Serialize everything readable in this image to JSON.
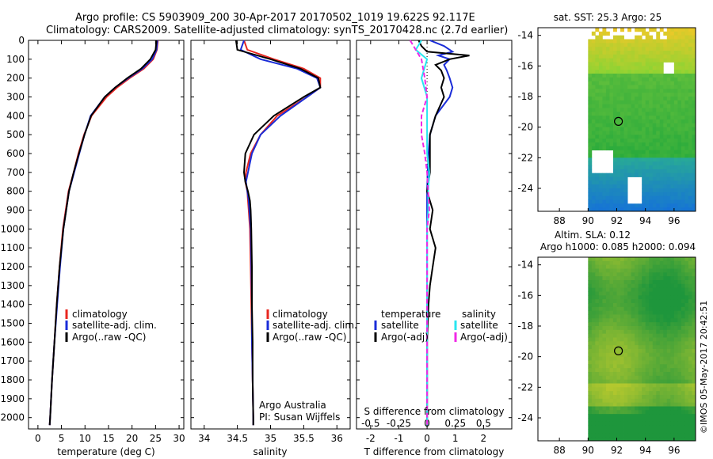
{
  "header": {
    "line1": "Argo profile: CS 5903909_200 30-Apr-2017 20170502_1019 19.622S 92.117E",
    "line2": "Climatology: CARS2009. Satellite-adjusted climatology: synTS_20170428.nc (2.7d earlier)"
  },
  "colors": {
    "climatology": "#e8261f",
    "satellite": "#1a2cd8",
    "argo": "#000000",
    "s_satellite": "#28e6f0",
    "s_argo": "#f028e6"
  },
  "chart_data": [
    {
      "id": "temperature",
      "type": "line",
      "xlabel": "temperature (deg C)",
      "xlim": [
        -2,
        31
      ],
      "xticks": [
        0,
        5,
        10,
        15,
        20,
        25,
        30
      ],
      "ylim": [
        2060,
        0
      ],
      "yticks": [
        0,
        100,
        200,
        300,
        400,
        500,
        600,
        700,
        800,
        900,
        1000,
        1100,
        1200,
        1300,
        1400,
        1500,
        1600,
        1700,
        1800,
        1900,
        2000
      ],
      "legend": [
        "climatology",
        "satellite-adj. clim.",
        "Argo(..raw -QC)"
      ],
      "series": [
        {
          "name": "climatology",
          "depth": [
            0,
            50,
            100,
            150,
            200,
            250,
            300,
            400,
            500,
            600,
            700,
            800,
            1000,
            1200,
            1400,
            1600,
            1800,
            2000,
            2040
          ],
          "values": [
            25.5,
            25.3,
            24.5,
            22.5,
            19.5,
            16.8,
            14.6,
            11.4,
            9.8,
            8.6,
            7.6,
            6.5,
            5.3,
            4.6,
            4.0,
            3.5,
            3.0,
            2.6,
            2.5
          ]
        },
        {
          "name": "satellite-adj. clim.",
          "depth": [
            0,
            50,
            100,
            150,
            200,
            250,
            300,
            400,
            500,
            600,
            700,
            800,
            1000,
            1200,
            1400,
            1600,
            1800,
            2000,
            2040
          ],
          "values": [
            25.4,
            25.2,
            24.3,
            22.2,
            19.2,
            16.4,
            14.2,
            11.2,
            9.9,
            8.8,
            7.7,
            6.6,
            5.4,
            4.7,
            4.1,
            3.5,
            3.0,
            2.6,
            2.5
          ]
        },
        {
          "name": "Argo(..raw -QC)",
          "depth": [
            0,
            50,
            100,
            150,
            200,
            250,
            300,
            400,
            500,
            600,
            700,
            800,
            1000,
            1200,
            1400,
            1600,
            1800,
            2000,
            2040
          ],
          "values": [
            25.2,
            25.0,
            23.9,
            21.9,
            19.0,
            16.4,
            14.2,
            11.3,
            9.9,
            8.7,
            7.6,
            6.6,
            5.4,
            4.6,
            4.0,
            3.5,
            3.0,
            2.6,
            2.5
          ]
        }
      ]
    },
    {
      "id": "salinity",
      "type": "line",
      "xlabel": "salinity",
      "xlim": [
        33.8,
        36.2
      ],
      "xticks": [
        34,
        34.5,
        35,
        35.5,
        36
      ],
      "ylim": [
        2060,
        0
      ],
      "legend": [
        "climatology",
        "satellite-adj. clim.",
        "Argo(..raw -QC)"
      ],
      "annotations": [
        "Argo Australia",
        "PI: Susan Wijffels"
      ],
      "series": [
        {
          "name": "climatology",
          "depth": [
            0,
            50,
            100,
            150,
            200,
            250,
            300,
            400,
            500,
            600,
            700,
            750,
            800,
            850,
            900,
            1000,
            1200,
            1400,
            1600,
            1800,
            2000,
            2040
          ],
          "values": [
            34.6,
            34.65,
            35.05,
            35.5,
            35.75,
            35.75,
            35.55,
            35.1,
            34.85,
            34.7,
            34.63,
            34.62,
            34.65,
            34.66,
            34.67,
            34.69,
            34.7,
            34.71,
            34.72,
            34.73,
            34.74,
            34.74
          ]
        },
        {
          "name": "satellite-adj. clim.",
          "depth": [
            0,
            50,
            100,
            150,
            200,
            250,
            300,
            400,
            500,
            600,
            700,
            750,
            800,
            850,
            900,
            1000,
            1200,
            1400,
            1600,
            1800,
            2000,
            2040
          ],
          "values": [
            34.6,
            34.55,
            34.85,
            35.4,
            35.7,
            35.75,
            35.55,
            35.15,
            34.85,
            34.72,
            34.66,
            34.63,
            34.65,
            34.67,
            34.68,
            34.7,
            34.71,
            34.72,
            34.72,
            34.73,
            34.74,
            34.74
          ]
        },
        {
          "name": "Argo(..raw -QC)",
          "depth": [
            0,
            50,
            100,
            150,
            200,
            250,
            300,
            400,
            500,
            600,
            700,
            750,
            800,
            850,
            900,
            1000,
            1200,
            1400,
            1600,
            1800,
            2000,
            2040
          ],
          "values": [
            34.48,
            34.5,
            35.0,
            35.45,
            35.72,
            35.75,
            35.5,
            35.05,
            34.75,
            34.62,
            34.6,
            34.62,
            34.66,
            34.69,
            34.7,
            34.71,
            34.72,
            34.72,
            34.73,
            34.73,
            34.74,
            34.74
          ]
        }
      ]
    },
    {
      "id": "differences",
      "type": "line",
      "xlabel": "T difference from climatology",
      "x2label": "S difference from climatology",
      "xlim": [
        -2.5,
        3
      ],
      "xticks": [
        -2,
        -1,
        0,
        1,
        2
      ],
      "x2lim": [
        -0.625,
        0.75
      ],
      "x2ticks": [
        -0.5,
        -0.25,
        0,
        0.25,
        0.5
      ],
      "ylim": [
        2060,
        0
      ],
      "legend": [
        "temperature",
        "satellite",
        "Argo(-adj)",
        "salinity",
        "satellite",
        "Argo(-adj)"
      ],
      "series": [
        {
          "name": "temperature satellite",
          "depth": [
            0,
            30,
            60,
            80,
            100,
            130,
            160,
            200,
            250,
            300,
            400,
            500,
            600,
            700,
            800,
            900,
            1000,
            1200,
            1400,
            1600,
            1800,
            2000,
            2040
          ],
          "values": [
            0.1,
            0.6,
            0.9,
            0.4,
            0.8,
            0.6,
            0.7,
            0.8,
            0.9,
            0.8,
            0.3,
            0.1,
            0.05,
            0.02,
            0.0,
            0.0,
            0.0,
            0.0,
            0.0,
            0.0,
            0.0,
            0.0,
            0.0
          ]
        },
        {
          "name": "temperature Argo(-adj)",
          "depth": [
            0,
            30,
            60,
            80,
            100,
            130,
            160,
            200,
            250,
            300,
            400,
            500,
            600,
            700,
            800,
            900,
            1000,
            1100,
            1200,
            1300,
            1400,
            1600,
            1800,
            2000,
            2040
          ],
          "values": [
            -0.3,
            -0.2,
            0.0,
            1.5,
            0.8,
            0.3,
            0.5,
            0.6,
            0.5,
            0.6,
            0.3,
            0.1,
            0.1,
            0.1,
            0.0,
            0.2,
            0.1,
            0.3,
            0.2,
            0.1,
            0.05,
            0.0,
            0.0,
            0.0,
            0.0
          ]
        },
        {
          "name": "salinity satellite",
          "depth": [
            0,
            50,
            100,
            200,
            300,
            400,
            500,
            600,
            700,
            800,
            900,
            1000,
            1200,
            1400,
            1600,
            1800,
            2000,
            2040
          ],
          "values": [
            -0.05,
            -0.1,
            0.0,
            -0.05,
            0.0,
            0.0,
            0.0,
            0.0,
            0.02,
            0.01,
            0.01,
            0.0,
            0.0,
            0.0,
            0.0,
            0.0,
            0.0,
            0.0
          ]
        },
        {
          "name": "salinity Argo(-adj)",
          "depth": [
            0,
            50,
            100,
            200,
            300,
            400,
            500,
            600,
            700,
            800,
            900,
            1000,
            1200,
            1400,
            1600,
            1800,
            2000,
            2040
          ],
          "values": [
            -0.15,
            -0.1,
            -0.05,
            -0.02,
            0.0,
            -0.05,
            -0.05,
            -0.02,
            0.0,
            0.01,
            0.02,
            0.0,
            0.0,
            0.0,
            0.0,
            0.0,
            0.0,
            0.0
          ]
        }
      ]
    },
    {
      "id": "sst-map",
      "type": "heatmap",
      "title": "sat. SST: 25.3 Argo: 25",
      "xlim": [
        86.5,
        97.5
      ],
      "ylim": [
        -25.5,
        -13.5
      ],
      "xticks": [
        88,
        90,
        92,
        94,
        96
      ],
      "yticks": [
        -14,
        -16,
        -18,
        -20,
        -22,
        -24
      ],
      "marker": {
        "lon": 92.117,
        "lat": -19.622
      }
    },
    {
      "id": "sla-map",
      "type": "heatmap",
      "title": "Altim. SLA: 0.12",
      "subtitle": "Argo h1000: 0.085 h2000: 0.094",
      "xlim": [
        86.5,
        97.5
      ],
      "ylim": [
        -25.5,
        -13.5
      ],
      "xticks": [
        88,
        90,
        92,
        94,
        96
      ],
      "yticks": [
        -14,
        -16,
        -18,
        -20,
        -22,
        -24
      ],
      "marker": {
        "lon": 92.117,
        "lat": -19.622
      }
    }
  ],
  "footer": {
    "stamp": "©IMOS 05-May-2017 20:42:51"
  }
}
